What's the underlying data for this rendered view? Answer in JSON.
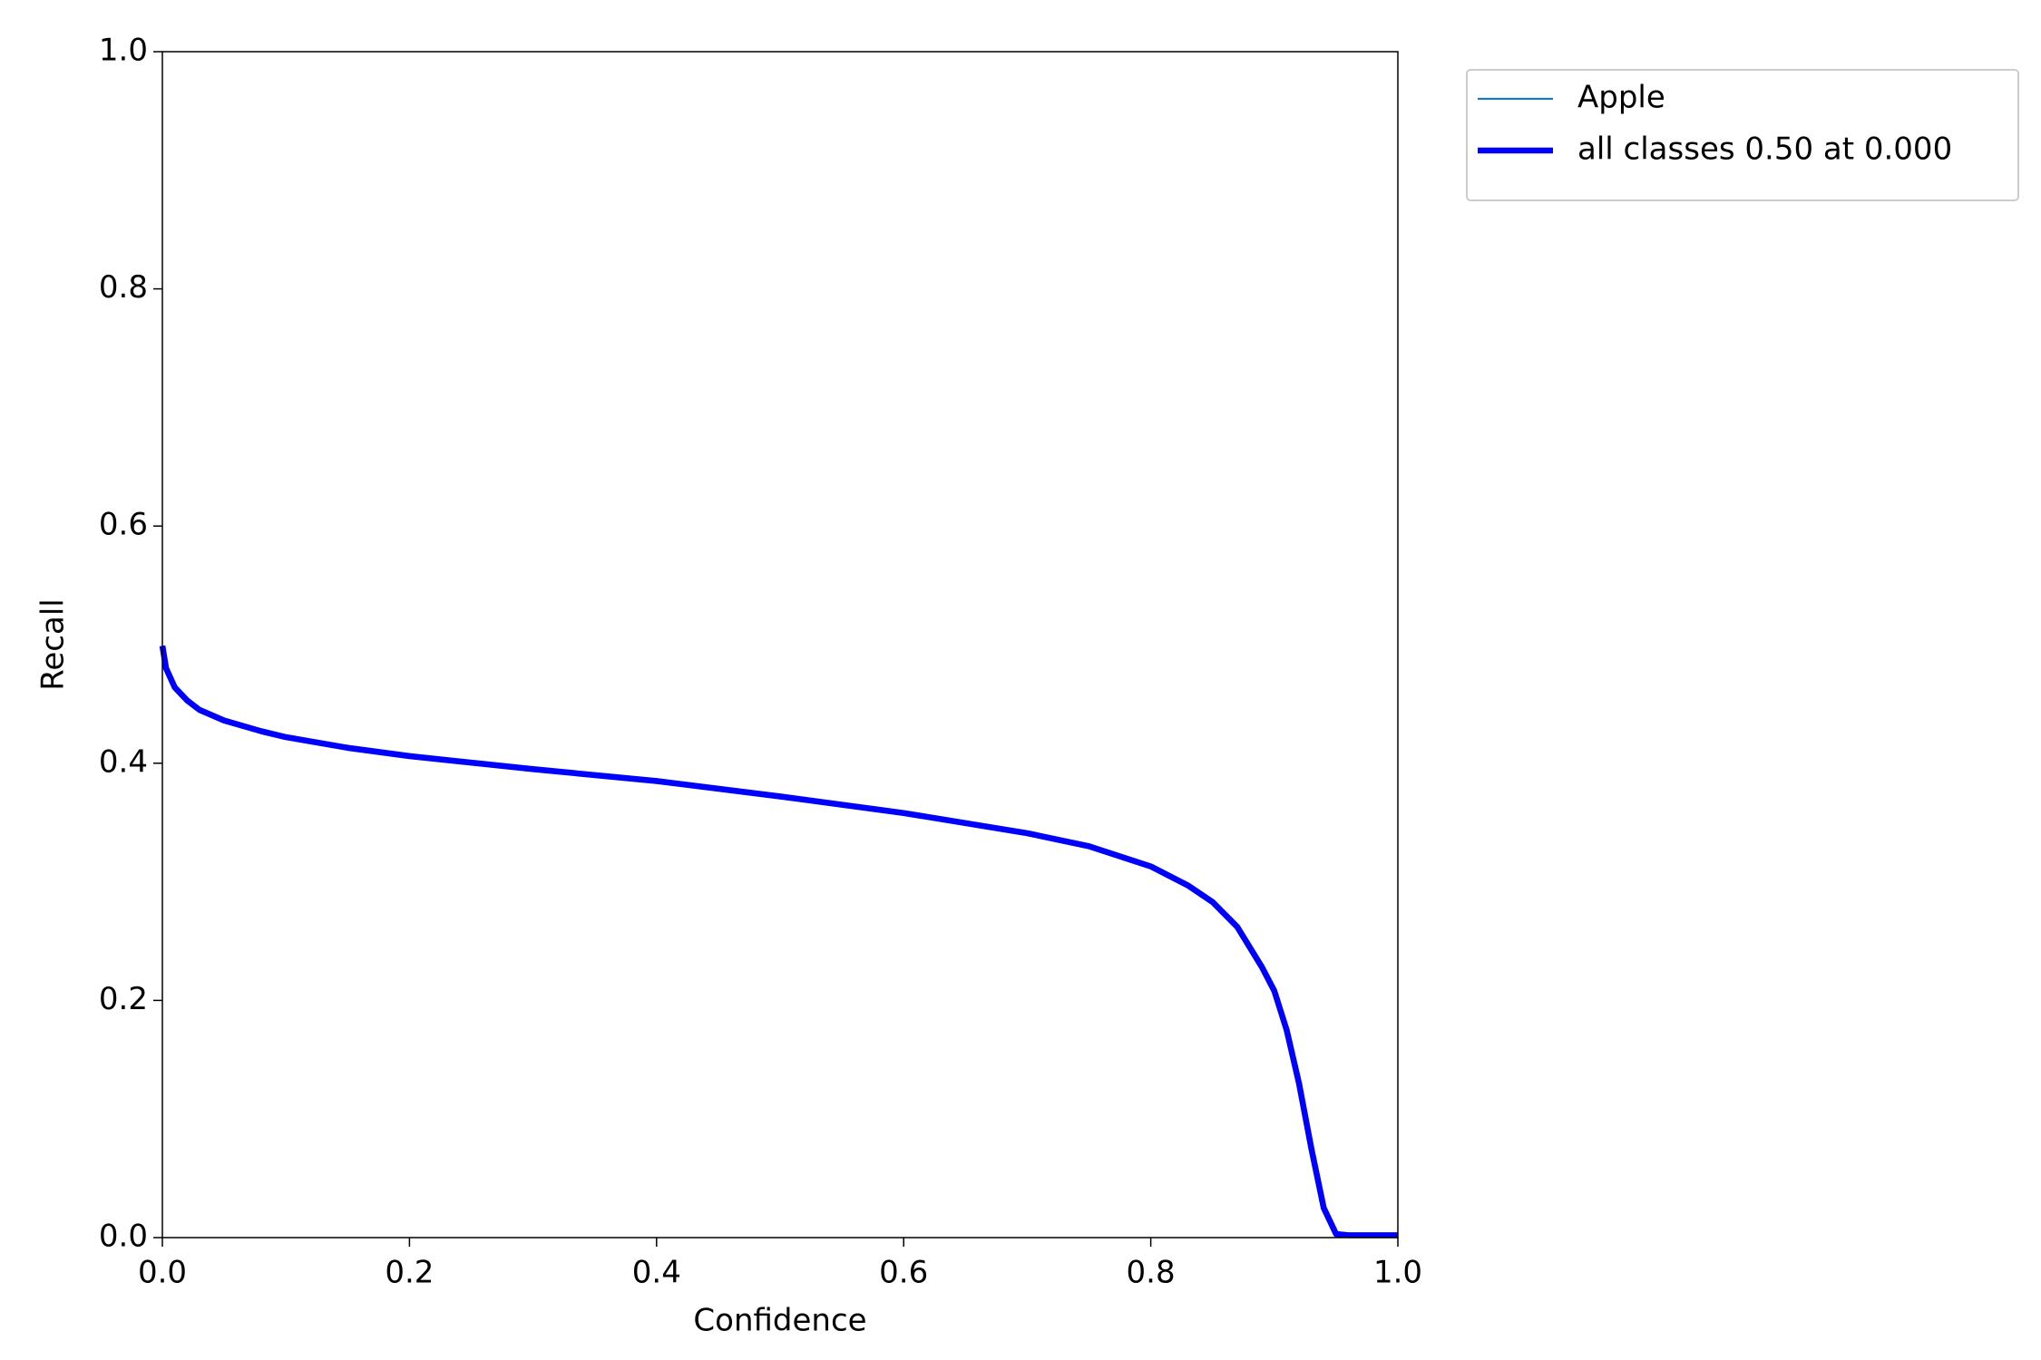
{
  "chart_data": {
    "type": "line",
    "xlabel": "Confidence",
    "ylabel": "Recall",
    "x": [
      0,
      0.003,
      0.01,
      0.02,
      0.03,
      0.05,
      0.08,
      0.1,
      0.15,
      0.2,
      0.3,
      0.4,
      0.5,
      0.6,
      0.7,
      0.75,
      0.8,
      0.83,
      0.85,
      0.87,
      0.89,
      0.9,
      0.91,
      0.92,
      0.93,
      0.94,
      0.95,
      0.96,
      1.0
    ],
    "series": [
      {
        "name": "Apple",
        "color": "#1f77b4",
        "width": 1,
        "values": [
          0.499,
          0.48,
          0.464,
          0.453,
          0.445,
          0.436,
          0.427,
          0.422,
          0.413,
          0.406,
          0.395,
          0.385,
          0.372,
          0.358,
          0.341,
          0.33,
          0.313,
          0.297,
          0.283,
          0.262,
          0.228,
          0.208,
          0.175,
          0.13,
          0.075,
          0.025,
          0.003,
          0.002,
          0.002
        ]
      },
      {
        "name": "all classes 0.50 at 0.000",
        "color": "#0000ff",
        "width": 3,
        "values": [
          0.499,
          0.48,
          0.464,
          0.453,
          0.445,
          0.436,
          0.427,
          0.422,
          0.413,
          0.406,
          0.395,
          0.385,
          0.372,
          0.358,
          0.341,
          0.33,
          0.313,
          0.297,
          0.283,
          0.262,
          0.228,
          0.208,
          0.175,
          0.13,
          0.075,
          0.025,
          0.003,
          0.002,
          0.002
        ]
      }
    ],
    "xlim": [
      0,
      1
    ],
    "ylim": [
      0,
      1
    ],
    "xticks": [
      {
        "value": 0,
        "label": "0.0"
      },
      0.2,
      0.4,
      0.6,
      0.8,
      {
        "value": 1,
        "label": "1.0"
      }
    ],
    "yticks": [
      {
        "value": 0,
        "label": "0.0"
      },
      0.2,
      0.4,
      0.6,
      0.8,
      {
        "value": 1,
        "label": "1.0"
      }
    ],
    "grid": false,
    "legend": "outside-upper-right"
  }
}
